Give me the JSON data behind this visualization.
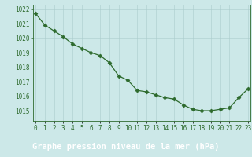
{
  "x": [
    0,
    1,
    2,
    3,
    4,
    5,
    6,
    7,
    8,
    9,
    10,
    11,
    12,
    13,
    14,
    15,
    16,
    17,
    18,
    19,
    20,
    21,
    22,
    23
  ],
  "y": [
    1021.7,
    1020.9,
    1020.5,
    1020.1,
    1019.6,
    1019.3,
    1019.0,
    1018.8,
    1018.3,
    1017.4,
    1017.1,
    1016.4,
    1016.3,
    1016.1,
    1015.9,
    1015.8,
    1015.4,
    1015.1,
    1015.0,
    1015.0,
    1015.1,
    1015.2,
    1015.9,
    1016.5
  ],
  "line_color": "#2d6a2d",
  "marker": "D",
  "marker_size": 2.5,
  "bg_color": "#cce8e8",
  "grid_color": "#aacccc",
  "tick_label_color": "#2d6a2d",
  "xlabel": "Graphe pression niveau de la mer (hPa)",
  "xlabel_color": "#ffffff",
  "xlabel_bg": "#2d6a2d",
  "ylim": [
    1014.3,
    1022.3
  ],
  "yticks": [
    1015,
    1016,
    1017,
    1018,
    1019,
    1020,
    1021,
    1022
  ],
  "xtick_labels": [
    "0",
    "1",
    "2",
    "3",
    "4",
    "5",
    "6",
    "7",
    "8",
    "9",
    "10",
    "11",
    "12",
    "13",
    "14",
    "15",
    "16",
    "17",
    "18",
    "19",
    "20",
    "21",
    "22",
    "23"
  ],
  "fontsize_ticks": 5.5,
  "fontsize_xlabel": 7.5
}
